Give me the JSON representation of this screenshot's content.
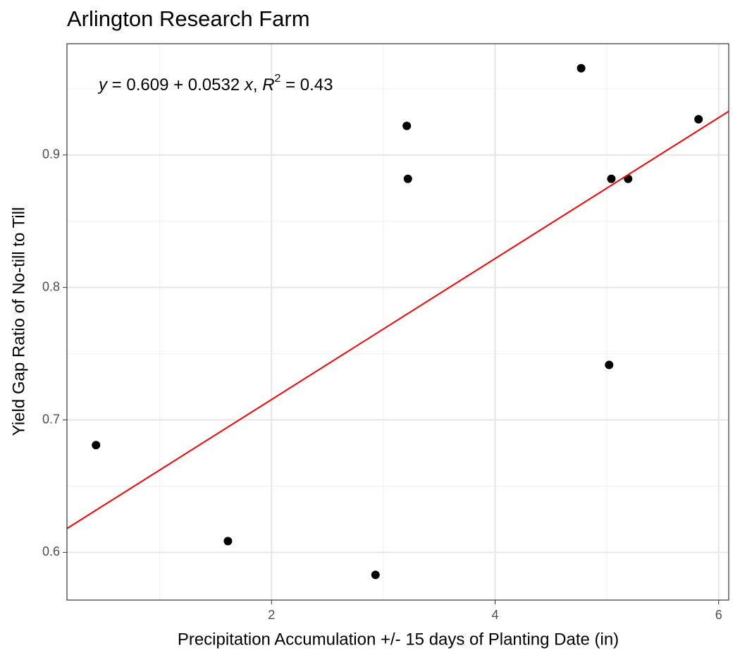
{
  "chart_data": {
    "type": "scatter",
    "title": "Arlington Research Farm",
    "x_label": "Precipitation Accumulation +/- 15 days of Planting Date (in)",
    "y_label": "Yield Gap Ratio of No-till to Till",
    "x": [
      0.43,
      1.61,
      2.93,
      3.21,
      3.22,
      4.77,
      5.02,
      5.04,
      5.19,
      5.82
    ],
    "y": [
      0.681,
      0.6085,
      0.583,
      0.922,
      0.882,
      0.9655,
      0.7415,
      0.882,
      0.882,
      0.927
    ],
    "color": "#000000",
    "xlim": [
      0.17,
      6.09
    ],
    "ylim": [
      0.564,
      0.984
    ],
    "xticks": [
      2,
      4,
      6
    ],
    "yticks": [
      0.6,
      0.7,
      0.8,
      0.9
    ],
    "x_minor_grid": [
      1,
      3,
      5
    ],
    "y_minor_grid": [
      0.65,
      0.75,
      0.85,
      0.95
    ],
    "grid": true,
    "fit_line": {
      "intercept": 0.609,
      "slope": 0.0532,
      "color": "#ff0000"
    },
    "equation_parts": [
      "y",
      " = 0.609 + 0.0532 ",
      "x",
      ", ",
      "R",
      "2",
      " = 0.43"
    ]
  }
}
